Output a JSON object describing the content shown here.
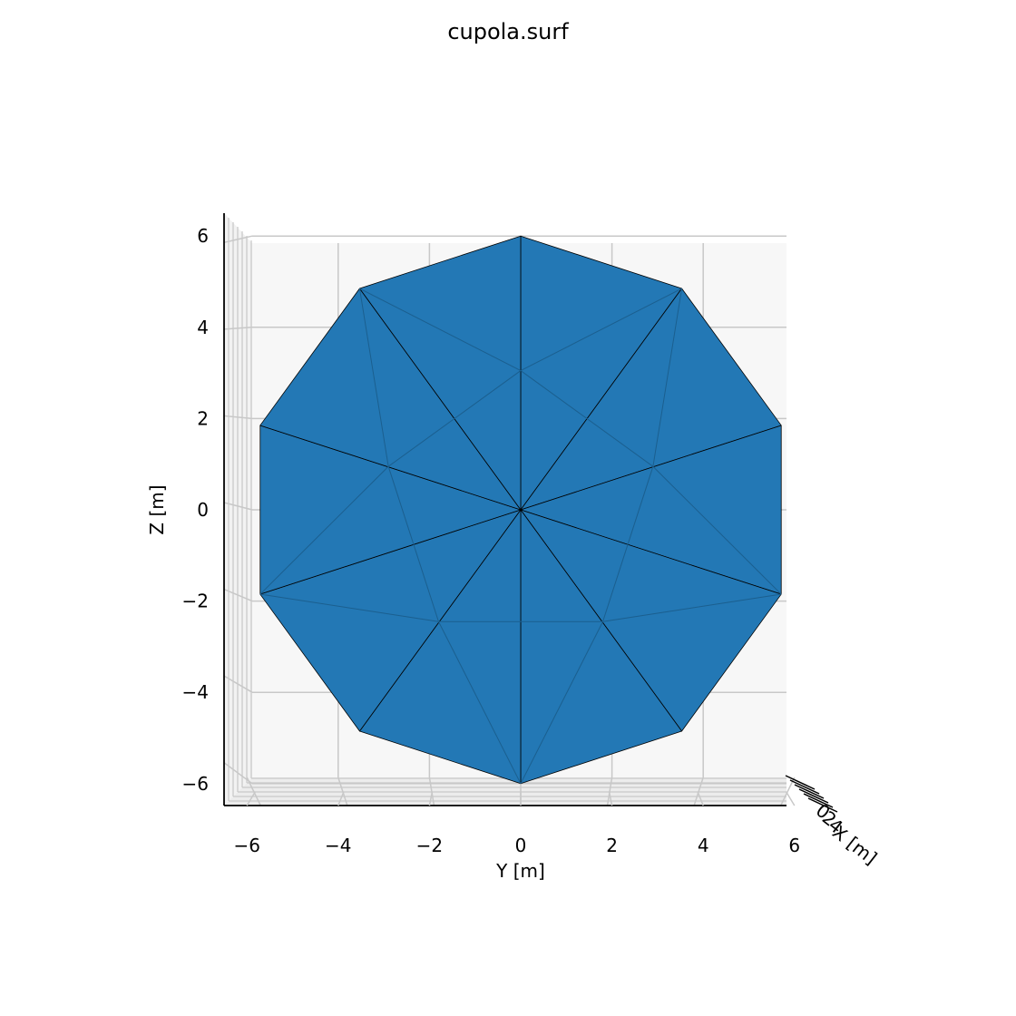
{
  "chart_data": {
    "type": "surface3d",
    "title": "cupola.surf",
    "xlabel": "X [m]",
    "ylabel": "Y [m]",
    "zlabel": "Z [m]",
    "view": "front (Y horizontal, Z vertical)",
    "ylim": [
      -6.5,
      6.5
    ],
    "zlim": [
      -6.5,
      6.5
    ],
    "y_ticks": [
      -6,
      -4,
      -2,
      0,
      2,
      4,
      6
    ],
    "z_ticks": [
      -6,
      -4,
      -2,
      0,
      2,
      4,
      6
    ],
    "y_tick_labels": [
      "−6",
      "−4",
      "−2",
      "0",
      "2",
      "4",
      "6"
    ],
    "z_tick_labels": [
      "−6",
      "−4",
      "−2",
      "0",
      "2",
      "4",
      "6"
    ],
    "x_tick_labels": [
      "0",
      "2",
      "4"
    ],
    "grid": true,
    "face_color": "#2378b5",
    "edge_color": "#000000",
    "pane_color": "#f7f7f7",
    "grid_color": "#c8c8c8",
    "center": [
      0,
      0
    ],
    "outer_vertices": [
      [
        0,
        6.0
      ],
      [
        3.53,
        4.85
      ],
      [
        5.71,
        1.85
      ],
      [
        5.71,
        -1.85
      ],
      [
        3.53,
        -4.85
      ],
      [
        0,
        -6.0
      ],
      [
        -3.53,
        -4.85
      ],
      [
        -5.71,
        -1.85
      ],
      [
        -5.71,
        1.85
      ],
      [
        -3.53,
        4.85
      ]
    ],
    "inner_points": [
      [
        0,
        3.05
      ],
      [
        2.9,
        0.95
      ],
      [
        1.8,
        -2.45
      ],
      [
        -1.8,
        -2.45
      ],
      [
        -2.9,
        0.95
      ]
    ]
  }
}
